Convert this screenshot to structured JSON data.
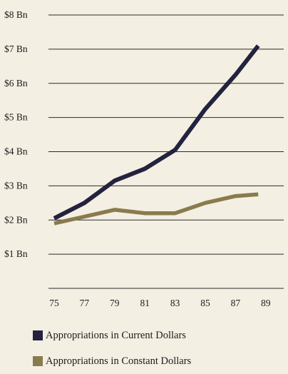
{
  "chart_data": {
    "type": "line",
    "x": [
      "75",
      "77",
      "79",
      "81",
      "83",
      "85",
      "87",
      "89"
    ],
    "y_ticks": [
      "$1 Bn",
      "$2 Bn",
      "$3 Bn",
      "$4 Bn",
      "$5 Bn",
      "$6 Bn",
      "$7 Bn",
      "$8 Bn"
    ],
    "ylim": [
      0,
      8
    ],
    "grid": "horizontal",
    "legend_position": "bottom",
    "series": [
      {
        "name": "Appropriations in Current Dollars",
        "color": "#23233f",
        "points": [
          [
            75,
            2.05
          ],
          [
            77,
            2.5
          ],
          [
            79,
            3.15
          ],
          [
            81,
            3.5
          ],
          [
            83,
            4.05
          ],
          [
            85,
            5.25
          ],
          [
            87,
            6.25
          ],
          [
            88.5,
            7.1
          ]
        ]
      },
      {
        "name": "Appropriations in Constant Dollars",
        "color": "#8a7b4e",
        "points": [
          [
            75,
            1.9
          ],
          [
            77,
            2.1
          ],
          [
            79,
            2.3
          ],
          [
            81,
            2.2
          ],
          [
            83,
            2.2
          ],
          [
            85,
            2.5
          ],
          [
            87,
            2.7
          ],
          [
            88.5,
            2.75
          ]
        ]
      }
    ]
  }
}
